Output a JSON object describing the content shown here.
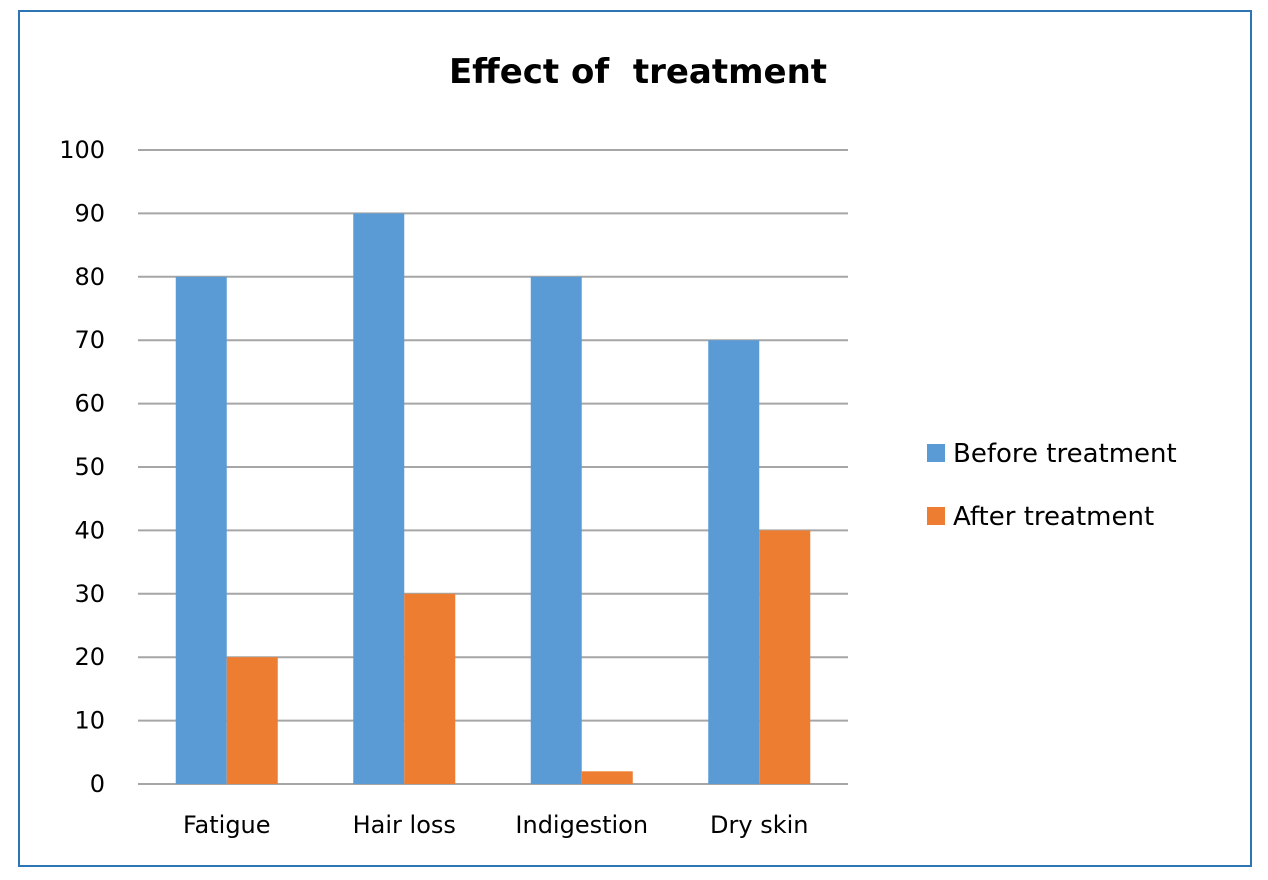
{
  "chart_data": {
    "type": "bar",
    "title": "Effect of  treatment",
    "xlabel": "",
    "ylabel": "",
    "categories": [
      "Fatigue",
      "Hair loss",
      "Indigestion",
      "Dry skin"
    ],
    "series": [
      {
        "name": "Before treatment",
        "color": "#5b9bd5",
        "values": [
          80,
          90,
          80,
          70
        ]
      },
      {
        "name": "After treatment",
        "color": "#ed7d31",
        "values": [
          20,
          30,
          2,
          40
        ]
      }
    ],
    "ylim": [
      0,
      100
    ],
    "yticks": [
      "0",
      "10",
      "20",
      "30",
      "40",
      "50",
      "60",
      "70",
      "80",
      "90",
      "100"
    ],
    "grid": true,
    "legend_position": "right"
  }
}
